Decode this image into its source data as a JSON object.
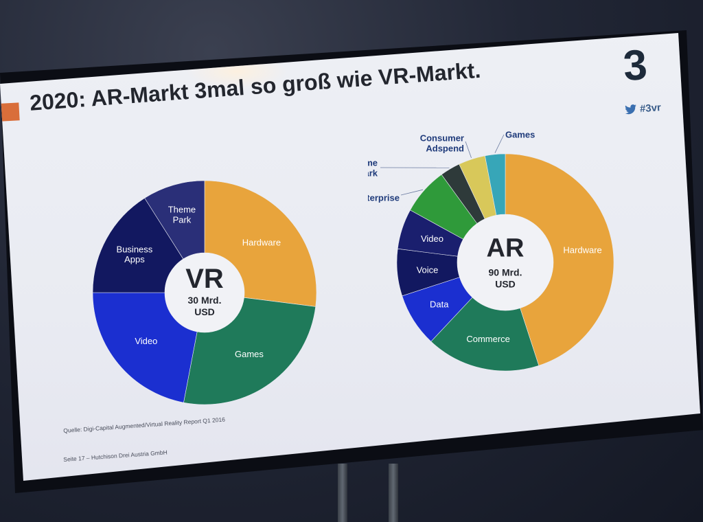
{
  "slide": {
    "title": "2020: AR-Markt 3mal so groß wie VR-Markt.",
    "logo_text": "3",
    "hashtag": "#3vr",
    "source": "Quelle: Digi-Capital Augmented/Virtual Reality Report Q1 2016",
    "footer": "Seite 17 – Hutchison Drei Austria GmbH"
  },
  "icons": [
    "twitter-bird-icon"
  ],
  "colors": {
    "accent_square": "#d96e3a",
    "hardware": "#e8a43c",
    "games": "#1f7a5a",
    "video": "#1b2fd0",
    "business_apps": "#121860",
    "theme_park": "#2a2f78",
    "commerce": "#1f7a5a",
    "data": "#1b2fd0",
    "voice": "#121860",
    "enterprise": "#2f9a3a"
  },
  "chart_data": [
    {
      "type": "pie",
      "center_title": "VR",
      "center_subtitle": [
        "30 Mrd.",
        "USD"
      ],
      "categories": [
        "Hardware",
        "Games",
        "Video",
        "Business Apps",
        "Theme Park"
      ],
      "values": [
        27,
        26,
        22,
        16,
        9
      ],
      "colors": [
        "#e8a43c",
        "#1f7a5a",
        "#1b2fd0",
        "#121860",
        "#2a2f78"
      ],
      "label_colors": [
        "#ffffff",
        "#ffffff",
        "#ffffff",
        "#ffffff",
        "#ffffff"
      ]
    },
    {
      "type": "pie",
      "center_title": "AR",
      "center_subtitle": [
        "90 Mrd.",
        "USD"
      ],
      "categories": [
        "Hardware",
        "Commerce",
        "Data",
        "Voice",
        "Video",
        "Enterprise",
        "Theme Park",
        "Consumer Adspend",
        "Games"
      ],
      "values": [
        45,
        17,
        8,
        7,
        6,
        7,
        3,
        4,
        3
      ],
      "colors": [
        "#e8a43c",
        "#1f7a5a",
        "#1b2fd0",
        "#121860",
        "#1a1f6e",
        "#2f9a3a",
        "#2e3a3a",
        "#d8c85a",
        "#37a6b8"
      ],
      "extra_colors": [
        "#1d3a8a"
      ]
    }
  ]
}
